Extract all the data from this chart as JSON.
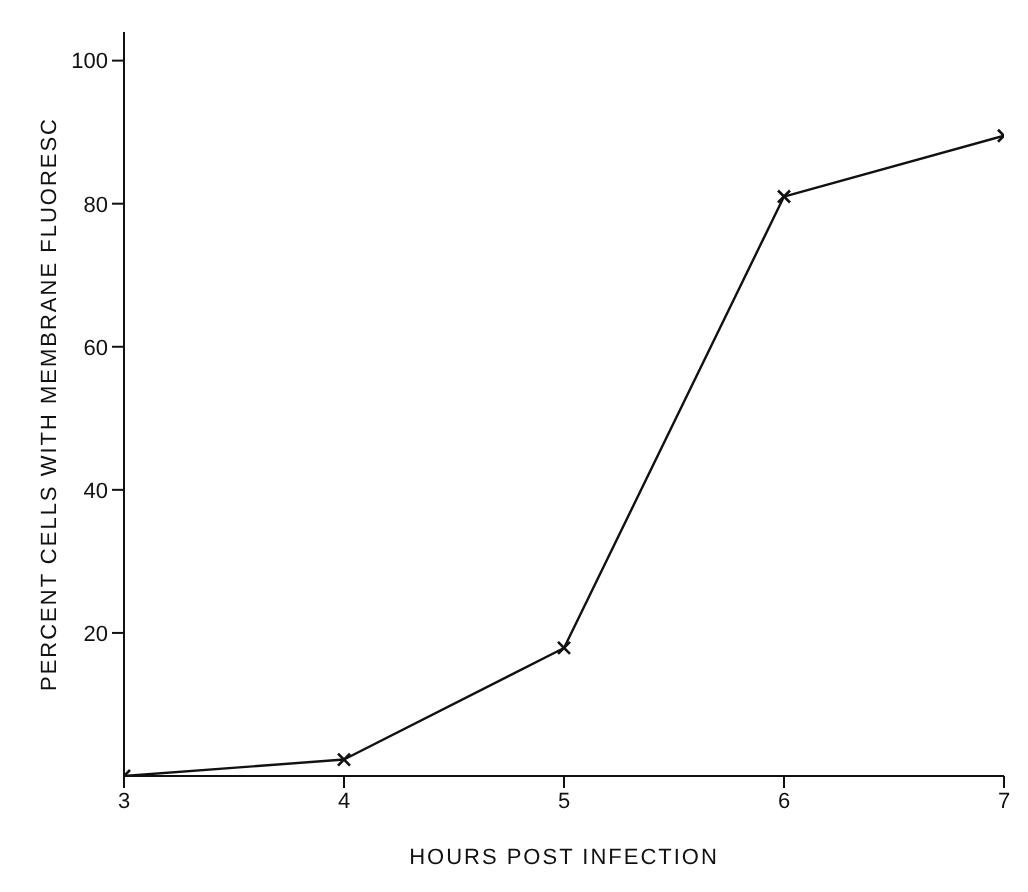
{
  "chart_data": {
    "type": "line",
    "xlabel": "HOURS POST INFECTION",
    "ylabel": "PERCENT CELLS WITH MEMBRANE FLUORESC",
    "x": [
      3,
      4,
      5,
      6,
      7
    ],
    "series": [
      {
        "color": "#111111",
        "values": [
          0,
          2.3,
          17.9,
          81,
          89.5
        ]
      }
    ],
    "xlim": [
      3,
      7
    ],
    "ylim": [
      0,
      104
    ],
    "xticks": [
      3,
      4,
      5,
      6,
      7
    ],
    "yticks": [
      20,
      40,
      60,
      80,
      100
    ],
    "grid": false,
    "legend": false,
    "marker": "cross",
    "line_style": "solid"
  }
}
